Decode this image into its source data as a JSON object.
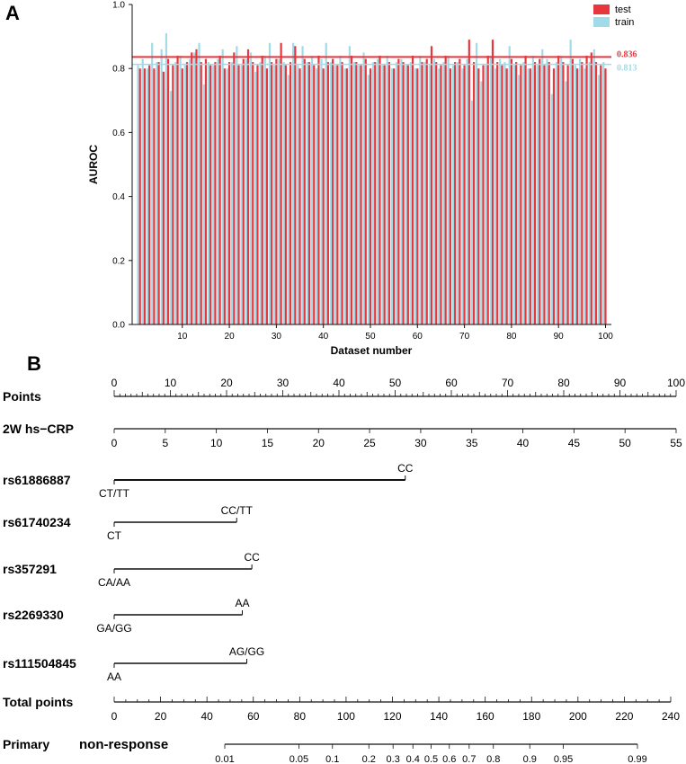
{
  "colors": {
    "test": "#e8373c",
    "train": "#9fdbe8",
    "axis": "#111111"
  },
  "chart_data": [
    {
      "panel": "A",
      "type": "bar",
      "ylabel": "AUROC",
      "xlabel": "Dataset number",
      "ylim": [
        0,
        1
      ],
      "yticks": [
        "0.0",
        "0.2",
        "0.4",
        "0.6",
        "0.8",
        "1.0"
      ],
      "xticks": [
        "10",
        "20",
        "30",
        "40",
        "50",
        "60",
        "70",
        "80",
        "90",
        "100"
      ],
      "legend_position": "top-right",
      "series": [
        {
          "name": "test",
          "values": [
            0.8,
            0.8,
            0.81,
            0.8,
            0.82,
            0.79,
            0.83,
            0.81,
            0.84,
            0.8,
            0.82,
            0.85,
            0.86,
            0.82,
            0.83,
            0.81,
            0.82,
            0.84,
            0.8,
            0.82,
            0.85,
            0.81,
            0.83,
            0.86,
            0.82,
            0.81,
            0.84,
            0.8,
            0.82,
            0.83,
            0.88,
            0.81,
            0.82,
            0.87,
            0.8,
            0.83,
            0.82,
            0.81,
            0.84,
            0.8,
            0.82,
            0.83,
            0.81,
            0.82,
            0.8,
            0.84,
            0.82,
            0.81,
            0.83,
            0.8,
            0.82,
            0.84,
            0.81,
            0.82,
            0.8,
            0.83,
            0.82,
            0.81,
            0.84,
            0.8,
            0.82,
            0.83,
            0.87,
            0.82,
            0.81,
            0.84,
            0.8,
            0.82,
            0.83,
            0.81,
            0.89,
            0.82,
            0.8,
            0.81,
            0.84,
            0.89,
            0.82,
            0.81,
            0.8,
            0.83,
            0.82,
            0.81,
            0.84,
            0.8,
            0.82,
            0.83,
            0.81,
            0.82,
            0.8,
            0.84,
            0.82,
            0.81,
            0.83,
            0.8,
            0.82,
            0.84,
            0.85,
            0.82,
            0.81,
            0.8
          ]
        },
        {
          "name": "train",
          "values": [
            0.81,
            0.83,
            0.8,
            0.88,
            0.82,
            0.86,
            0.91,
            0.73,
            0.82,
            0.84,
            0.81,
            0.83,
            0.85,
            0.88,
            0.75,
            0.82,
            0.81,
            0.83,
            0.86,
            0.8,
            0.82,
            0.87,
            0.81,
            0.83,
            0.85,
            0.79,
            0.82,
            0.84,
            0.88,
            0.81,
            0.83,
            0.82,
            0.78,
            0.88,
            0.81,
            0.87,
            0.82,
            0.84,
            0.8,
            0.83,
            0.88,
            0.82,
            0.81,
            0.84,
            0.8,
            0.87,
            0.82,
            0.81,
            0.85,
            0.78,
            0.82,
            0.83,
            0.81,
            0.84,
            0.8,
            0.82,
            0.83,
            0.81,
            0.82,
            0.8,
            0.84,
            0.82,
            0.81,
            0.83,
            0.8,
            0.82,
            0.84,
            0.81,
            0.82,
            0.8,
            0.83,
            0.7,
            0.88,
            0.76,
            0.81,
            0.84,
            0.8,
            0.83,
            0.82,
            0.87,
            0.81,
            0.78,
            0.82,
            0.8,
            0.84,
            0.81,
            0.86,
            0.83,
            0.72,
            0.82,
            0.84,
            0.76,
            0.89,
            0.81,
            0.83,
            0.8,
            0.82,
            0.86,
            0.78,
            0.82
          ]
        }
      ],
      "reference_lines": [
        {
          "series": "test",
          "value": 0.836,
          "label": "0.836"
        },
        {
          "series": "train",
          "value": 0.813,
          "label": "0.813"
        }
      ]
    },
    {
      "panel": "B",
      "type": "nomogram",
      "scales": [
        {
          "label": "Points",
          "ticks": [
            "0",
            "10",
            "20",
            "30",
            "40",
            "50",
            "60",
            "70",
            "80",
            "90",
            "100"
          ],
          "tick_positions": [
            0,
            10,
            20,
            30,
            40,
            50,
            60,
            70,
            80,
            90,
            100
          ],
          "minor": 1,
          "tick_side": "above"
        },
        {
          "label": "2W hs−CRP",
          "ticks": [
            "0",
            "5",
            "10",
            "15",
            "20",
            "25",
            "30",
            "35",
            "40",
            "45",
            "50",
            "55"
          ],
          "tick_positions": [
            0,
            9.09,
            18.18,
            27.27,
            36.36,
            45.45,
            54.55,
            63.64,
            72.73,
            81.82,
            90.91,
            100
          ],
          "minor": 0,
          "tick_side": "below"
        }
      ],
      "variables": [
        {
          "label": "rs61886887",
          "low": "CT/TT",
          "high": "CC",
          "points": 51.8
        },
        {
          "label": "rs61740234",
          "low": "CT",
          "high": "CC/TT",
          "points": 21.8
        },
        {
          "label": "rs357291",
          "low": "CA/AA",
          "high": "CC",
          "points": 24.5
        },
        {
          "label": "rs2269330",
          "low": "GA/GG",
          "high": "AA",
          "points": 22.8
        },
        {
          "label": "rs111504845",
          "low": "AA",
          "high": "AG/GG",
          "points": 23.6
        }
      ],
      "total_points": {
        "label": "Total points",
        "range": [
          0,
          240
        ],
        "ticks": [
          "0",
          "20",
          "40",
          "60",
          "80",
          "100",
          "120",
          "140",
          "160",
          "180",
          "200",
          "220",
          "240"
        ]
      },
      "probability": {
        "label_a": "Primary",
        "label_b": "non-response",
        "ticks": [
          "0.01",
          "0.05",
          "0.1",
          "0.2",
          "0.3",
          "0.4",
          "0.5",
          "0.6",
          "0.7",
          "0.8",
          "0.9",
          "0.95",
          "0.99"
        ]
      }
    }
  ]
}
